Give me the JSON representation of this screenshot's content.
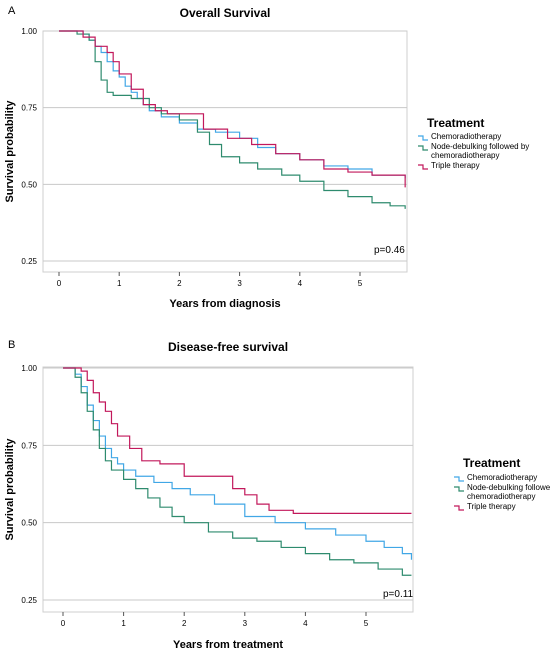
{
  "chart_data": [
    {
      "panel": "A",
      "type": "line",
      "title": "Overall Survival",
      "xlabel": "Years from diagnosis",
      "ylabel": "Survival probability",
      "xticks": [
        "0",
        "1",
        "2",
        "3",
        "4",
        "5"
      ],
      "yticks": [
        "1.00",
        "0.75",
        "0.50",
        "0.25"
      ],
      "xlim": [
        0,
        5.75
      ],
      "ylim": [
        0.25,
        1.0
      ],
      "grid": "horizontal",
      "legend_title": "Treatment",
      "legend_position": "right",
      "annotation": "p=0.46",
      "series": [
        {
          "name": "Chemoradiotherapy",
          "color": "#41a7e6",
          "x": [
            0,
            0.4,
            0.5,
            0.6,
            0.7,
            0.8,
            0.9,
            1.0,
            1.1,
            1.2,
            1.3,
            1.4,
            1.5,
            1.7,
            2.0,
            2.3,
            2.6,
            3.0,
            3.3,
            3.6,
            4.0,
            4.4,
            4.8,
            5.2,
            5.75
          ],
          "y": [
            1.0,
            0.99,
            0.97,
            0.95,
            0.93,
            0.9,
            0.87,
            0.85,
            0.82,
            0.8,
            0.78,
            0.76,
            0.74,
            0.72,
            0.7,
            0.68,
            0.67,
            0.65,
            0.62,
            0.6,
            0.58,
            0.56,
            0.55,
            0.53,
            0.52
          ]
        },
        {
          "name": "Node-debulking followed by chemoradiotherapy",
          "color": "#2e8b6e",
          "x": [
            0,
            0.3,
            0.5,
            0.6,
            0.7,
            0.8,
            0.9,
            1.0,
            1.2,
            1.3,
            1.5,
            1.7,
            2.0,
            2.3,
            2.5,
            2.7,
            3.0,
            3.3,
            3.7,
            4.0,
            4.4,
            4.8,
            5.2,
            5.5,
            5.75
          ],
          "y": [
            1.0,
            0.99,
            0.97,
            0.9,
            0.84,
            0.8,
            0.79,
            0.79,
            0.78,
            0.78,
            0.75,
            0.73,
            0.71,
            0.67,
            0.63,
            0.59,
            0.57,
            0.55,
            0.53,
            0.51,
            0.48,
            0.46,
            0.44,
            0.43,
            0.42
          ]
        },
        {
          "name": "Triple therapy",
          "color": "#c2185b",
          "x": [
            0,
            0.4,
            0.6,
            0.8,
            0.9,
            1.0,
            1.2,
            1.4,
            1.6,
            1.8,
            2.0,
            2.4,
            2.8,
            3.2,
            3.6,
            4.0,
            4.4,
            4.8,
            5.2,
            5.6,
            5.75
          ],
          "y": [
            1.0,
            0.98,
            0.95,
            0.93,
            0.9,
            0.86,
            0.81,
            0.76,
            0.74,
            0.73,
            0.73,
            0.68,
            0.65,
            0.63,
            0.6,
            0.58,
            0.55,
            0.54,
            0.53,
            0.53,
            0.49
          ]
        }
      ]
    },
    {
      "panel": "B",
      "type": "line",
      "title": "Disease-free survival",
      "xlabel": "Years from treatment",
      "ylabel": "Survival probability",
      "xticks": [
        "0",
        "1",
        "2",
        "3",
        "4",
        "5"
      ],
      "yticks": [
        "1.00",
        "0.75",
        "0.50",
        "0.25"
      ],
      "xlim": [
        0,
        5.75
      ],
      "ylim": [
        0.25,
        1.0
      ],
      "grid": "horizontal",
      "legend_title": "Treatment",
      "legend_position": "right",
      "annotation": "p=0.11",
      "series": [
        {
          "name": "Chemoradiotherapy",
          "color": "#41a7e6",
          "x": [
            0,
            0.2,
            0.3,
            0.4,
            0.5,
            0.6,
            0.7,
            0.8,
            0.9,
            1.0,
            1.2,
            1.5,
            1.8,
            2.1,
            2.5,
            3.0,
            3.5,
            4.0,
            4.5,
            5.0,
            5.3,
            5.6,
            5.75
          ],
          "y": [
            1.0,
            0.98,
            0.94,
            0.88,
            0.83,
            0.78,
            0.74,
            0.71,
            0.69,
            0.67,
            0.65,
            0.63,
            0.61,
            0.59,
            0.56,
            0.52,
            0.5,
            0.48,
            0.46,
            0.44,
            0.42,
            0.4,
            0.38
          ]
        },
        {
          "name": "Node-debulking followed by chemoradiotherapy",
          "color": "#2e8b6e",
          "x": [
            0,
            0.2,
            0.3,
            0.4,
            0.5,
            0.6,
            0.7,
            0.8,
            1.0,
            1.2,
            1.4,
            1.6,
            1.8,
            2.0,
            2.4,
            2.8,
            3.2,
            3.6,
            4.0,
            4.4,
            4.8,
            5.2,
            5.6,
            5.75
          ],
          "y": [
            1.0,
            0.97,
            0.92,
            0.86,
            0.8,
            0.74,
            0.7,
            0.67,
            0.64,
            0.61,
            0.58,
            0.55,
            0.52,
            0.5,
            0.47,
            0.45,
            0.44,
            0.42,
            0.4,
            0.38,
            0.37,
            0.35,
            0.33,
            0.33
          ]
        },
        {
          "name": "Triple therapy",
          "color": "#c2185b",
          "x": [
            0,
            0.3,
            0.4,
            0.5,
            0.6,
            0.7,
            0.8,
            0.9,
            1.1,
            1.3,
            1.6,
            2.0,
            2.4,
            2.8,
            3.0,
            3.2,
            3.4,
            3.8,
            4.2,
            4.6,
            5.0,
            5.4,
            5.75
          ],
          "y": [
            1.0,
            0.99,
            0.96,
            0.92,
            0.89,
            0.86,
            0.82,
            0.78,
            0.74,
            0.7,
            0.69,
            0.65,
            0.65,
            0.61,
            0.59,
            0.56,
            0.54,
            0.53,
            0.53,
            0.53,
            0.53,
            0.53,
            0.53
          ]
        }
      ]
    }
  ]
}
